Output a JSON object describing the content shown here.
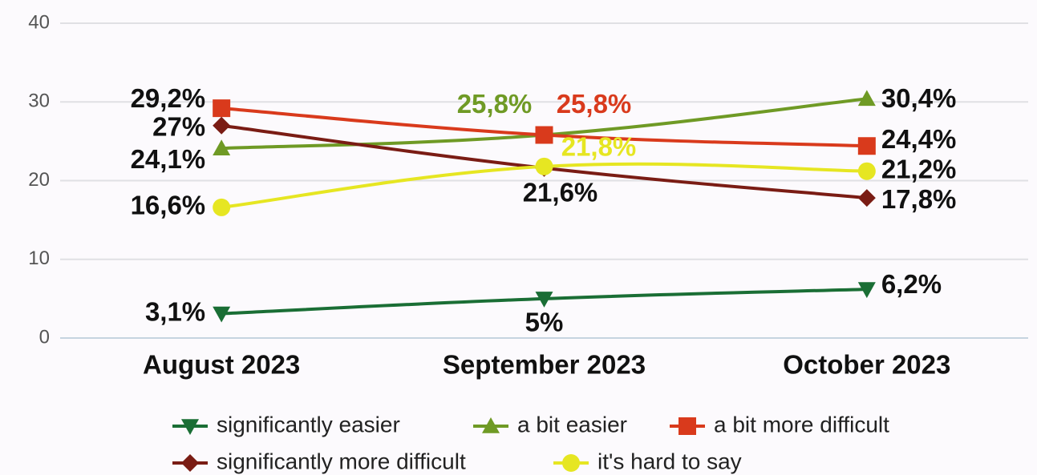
{
  "chart_data": {
    "type": "line",
    "categories": [
      "August 2023",
      "September 2023",
      "October 2023"
    ],
    "series": [
      {
        "name": "significantly easier",
        "color": "#1a6e35",
        "marker": "triangle-down",
        "values": [
          3.1,
          5,
          6.2
        ],
        "value_labels": [
          "3,1%",
          "5%",
          "6,2%"
        ]
      },
      {
        "name": "a bit easier",
        "color": "#6f9a25",
        "marker": "triangle-up",
        "values": [
          24.1,
          25.8,
          30.4
        ],
        "value_labels": [
          "24,1%",
          "25,8%",
          "30,4%"
        ]
      },
      {
        "name": "a bit more difficult",
        "color": "#d93a1c",
        "marker": "square",
        "values": [
          29.2,
          25.8,
          24.4
        ],
        "value_labels": [
          "29,2%",
          "25,8%",
          "24,4%"
        ]
      },
      {
        "name": "significantly more difficult",
        "color": "#7a1c14",
        "marker": "diamond",
        "values": [
          27,
          21.6,
          17.8
        ],
        "value_labels": [
          "27%",
          "21,6%",
          "17,8%"
        ]
      },
      {
        "name": "it's hard to say",
        "color": "#e6e622",
        "marker": "circle",
        "values": [
          16.6,
          21.8,
          21.2
        ],
        "value_labels": [
          "16,6%",
          "21,8%",
          "21,2%"
        ]
      }
    ],
    "ylim": [
      0,
      40
    ],
    "yticks": [
      0,
      10,
      20,
      30,
      40
    ],
    "grid": true,
    "legend": "bottom"
  }
}
